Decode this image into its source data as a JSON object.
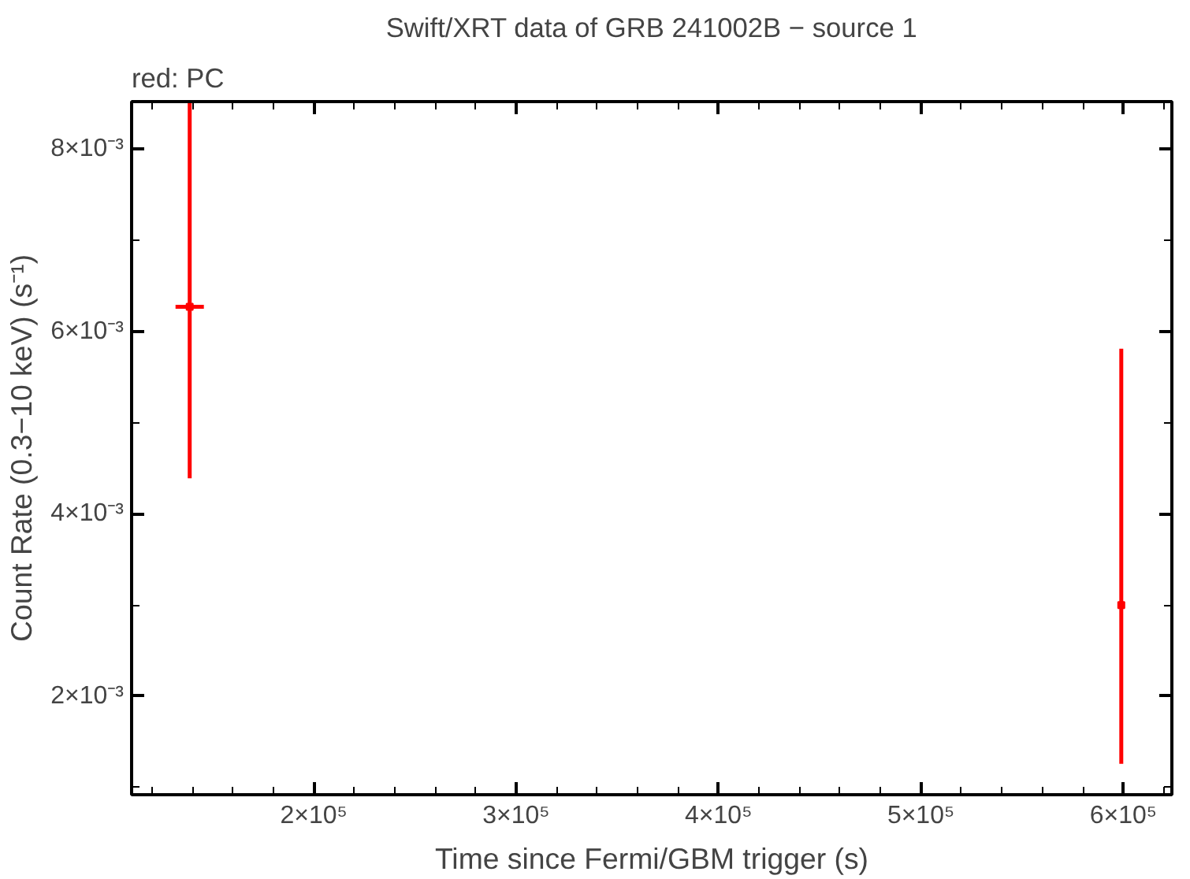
{
  "chart_data": {
    "type": "scatter",
    "title": "Swift/XRT data of GRB 241002B − source 1",
    "subtitle": "red: PC",
    "xlabel": "Time since Fermi/GBM trigger (s)",
    "ylabel": "Count Rate (0.3−10 keV) (s⁻¹)",
    "x": [
      138700,
      599000
    ],
    "series": [
      {
        "color": "#ff0000",
        "values": [
          0.00627,
          0.003
        ],
        "errors": [
          [
            0.00439,
            0.00856
          ],
          [
            0.00126,
            0.00581
          ]
        ],
        "xerrors": [
          7000,
          1000
        ]
      }
    ],
    "marker": "square",
    "xlim": [
      110000,
      624000
    ],
    "ylim": [
      0.00092,
      0.00852
    ],
    "xticks": [
      {
        "value": 200000,
        "label": "2×10⁵"
      },
      {
        "value": 300000,
        "label": "3×10⁵"
      },
      {
        "value": 400000,
        "label": "4×10⁵"
      },
      {
        "value": 500000,
        "label": "5×10⁵"
      },
      {
        "value": 600000,
        "label": "6×10⁵"
      }
    ],
    "yticks": [
      {
        "value": 0.002,
        "label": "2×10⁻³"
      },
      {
        "value": 0.004,
        "label": "4×10⁻³"
      },
      {
        "value": 0.006,
        "label": "6×10⁻³"
      },
      {
        "value": 0.008,
        "label": "8×10⁻³"
      }
    ]
  }
}
